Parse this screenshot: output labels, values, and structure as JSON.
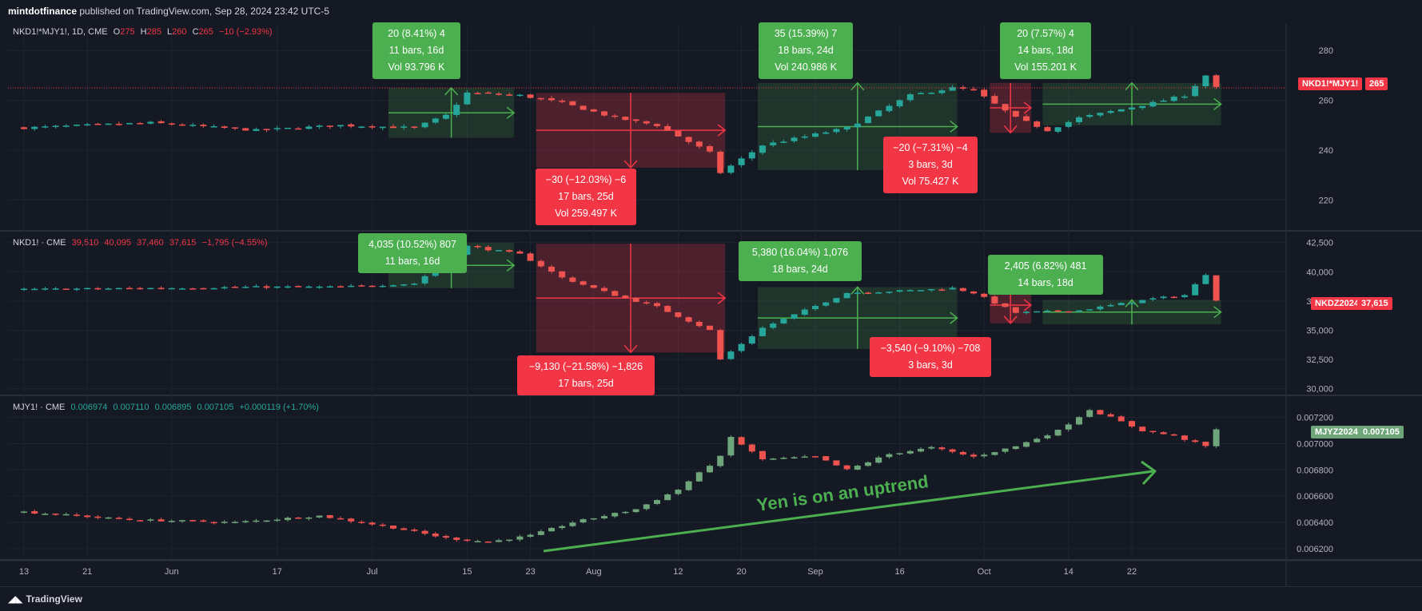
{
  "header": {
    "publisher": "mintdotfinance",
    "published_text": "published on TradingView.com, Sep 28, 2024 23:42 UTC-5"
  },
  "footer": {
    "brand": "TradingView"
  },
  "colors": {
    "up": "#26a69a",
    "down": "#ef5350",
    "mjy_up": "#6ea57a",
    "measure_up": "#4caf50",
    "measure_down": "#f23645",
    "background": "#151924"
  },
  "chart_data": [
    {
      "type": "candlestick",
      "pane": "ratio",
      "legend": {
        "symbol": "NKD1!*MJY1!, 1D, CME",
        "o_label": "O",
        "o": "275",
        "h_label": "H",
        "h": "285",
        "l_label": "L",
        "l": "260",
        "c_label": "C",
        "c": "265",
        "change": "−10 (−2.93%)"
      },
      "price_tag": {
        "symbol": "NKD1!*MJY1!",
        "value": "265"
      },
      "yticks": [
        "280",
        "260",
        "240",
        "220"
      ],
      "ytick_values": [
        280,
        260,
        240,
        220
      ],
      "ylim": [
        208,
        290
      ],
      "anchors": [
        [
          0,
          249
        ],
        [
          12,
          251
        ],
        [
          22,
          248
        ],
        [
          30,
          250
        ],
        [
          37,
          249
        ],
        [
          40,
          254
        ],
        [
          42,
          263
        ],
        [
          47,
          262
        ],
        [
          51,
          259
        ],
        [
          56,
          253
        ],
        [
          60,
          250
        ],
        [
          65,
          239
        ],
        [
          66,
          231
        ],
        [
          70,
          242
        ],
        [
          78,
          249
        ],
        [
          84,
          262
        ],
        [
          88,
          265
        ],
        [
          90,
          264
        ],
        [
          94,
          253
        ],
        [
          97,
          248
        ],
        [
          100,
          253
        ],
        [
          107,
          259
        ],
        [
          110,
          262
        ],
        [
          112,
          270
        ],
        [
          113,
          265
        ]
      ],
      "measures": [
        {
          "from": 35,
          "to": 46,
          "low": 245,
          "high": 265,
          "dir": "up",
          "text": [
            "20 (8.41%) 4",
            "11 bars, 16d",
            "Vol 93.796 K"
          ]
        },
        {
          "from": 49,
          "to": 66,
          "low": 233,
          "high": 263,
          "dir": "down",
          "text": [
            "−30 (−12.03%) −6",
            "17 bars, 25d",
            "Vol 259.497 K"
          ]
        },
        {
          "from": 70,
          "to": 88,
          "low": 232,
          "high": 267,
          "dir": "up",
          "text": [
            "35 (15.39%) 7",
            "18 bars, 24d",
            "Vol 240.986 K"
          ]
        },
        {
          "from": 92,
          "to": 95,
          "low": 247,
          "high": 267,
          "dir": "down",
          "text": [
            "−20 (−7.31%) −4",
            "3 bars, 3d",
            "Vol 75.427 K"
          ]
        },
        {
          "from": 97,
          "to": 113,
          "low": 250,
          "high": 267,
          "dir": "up",
          "text": [
            "20 (7.57%) 4",
            "14 bars, 18d",
            "Vol 155.201 K"
          ]
        }
      ]
    },
    {
      "type": "candlestick",
      "pane": "nikkei",
      "legend": {
        "symbol": "NKD1! · CME",
        "o": "39,510",
        "h": "40,095",
        "l": "37,460",
        "c": "37,615",
        "change": "−1,795 (−4.55%)"
      },
      "price_tag": {
        "symbol": "NKDZ2024",
        "value": "37,615"
      },
      "yticks": [
        "42,500",
        "40,000",
        "37,500",
        "35,000",
        "32,500",
        "30,000"
      ],
      "ytick_values": [
        42500,
        40000,
        37500,
        35000,
        32500,
        30000
      ],
      "ylim": [
        29500,
        43300
      ],
      "anchors": [
        [
          0,
          38500
        ],
        [
          12,
          38600
        ],
        [
          22,
          38700
        ],
        [
          30,
          38700
        ],
        [
          37,
          39000
        ],
        [
          42,
          42200
        ],
        [
          47,
          41500
        ],
        [
          51,
          39500
        ],
        [
          56,
          38000
        ],
        [
          60,
          37000
        ],
        [
          65,
          35000
        ],
        [
          66,
          32500
        ],
        [
          70,
          35200
        ],
        [
          78,
          38200
        ],
        [
          84,
          38400
        ],
        [
          88,
          38600
        ],
        [
          90,
          38200
        ],
        [
          94,
          36500
        ],
        [
          97,
          36600
        ],
        [
          100,
          36700
        ],
        [
          107,
          37700
        ],
        [
          110,
          38000
        ],
        [
          112,
          39800
        ],
        [
          113,
          37615
        ]
      ],
      "measures": [
        {
          "from": 35,
          "to": 46,
          "low": 38600,
          "high": 42500,
          "dir": "up",
          "text": [
            "4,035 (10.52%) 807",
            "11 bars, 16d"
          ]
        },
        {
          "from": 49,
          "to": 66,
          "low": 33100,
          "high": 42400,
          "dir": "down",
          "text": [
            "−9,130 (−21.58%) −1,826",
            "17 bars, 25d"
          ]
        },
        {
          "from": 70,
          "to": 88,
          "low": 33400,
          "high": 38700,
          "dir": "up",
          "text": [
            "5,380 (16.04%) 1,076",
            "18 bars, 24d"
          ]
        },
        {
          "from": 92,
          "to": 95,
          "low": 35600,
          "high": 38700,
          "dir": "down",
          "text": [
            "−3,540 (−9.10%) −708",
            "3 bars, 3d"
          ]
        },
        {
          "from": 97,
          "to": 113,
          "low": 35500,
          "high": 37600,
          "dir": "up",
          "text": [
            "2,405 (6.82%) 481",
            "14 bars, 18d"
          ]
        }
      ]
    },
    {
      "type": "candlestick",
      "pane": "yen",
      "legend": {
        "symbol": "MJY1! · CME",
        "o": "0.006974",
        "h": "0.007110",
        "l": "0.006895",
        "c": "0.007105",
        "change": "+0.000119 (+1.70%)"
      },
      "price_tag": {
        "symbol": "MJYZ2024",
        "value": "0.007105"
      },
      "yticks": [
        "0.007200",
        "0.007000",
        "0.006800",
        "0.006600",
        "0.006400",
        "0.006200"
      ],
      "ytick_values": [
        0.0072,
        0.007,
        0.0068,
        0.0066,
        0.0064,
        0.0062
      ],
      "ylim": [
        0.00612,
        0.00735
      ],
      "anchors": [
        [
          0,
          0.00648
        ],
        [
          10,
          0.00642
        ],
        [
          20,
          0.0064
        ],
        [
          28,
          0.00645
        ],
        [
          35,
          0.00636
        ],
        [
          40,
          0.00628
        ],
        [
          44,
          0.00625
        ],
        [
          48,
          0.0063
        ],
        [
          52,
          0.0064
        ],
        [
          58,
          0.0065
        ],
        [
          62,
          0.00665
        ],
        [
          66,
          0.0069
        ],
        [
          67,
          0.00705
        ],
        [
          70,
          0.00688
        ],
        [
          75,
          0.0069
        ],
        [
          78,
          0.0068
        ],
        [
          82,
          0.00692
        ],
        [
          86,
          0.00697
        ],
        [
          90,
          0.0069
        ],
        [
          94,
          0.00698
        ],
        [
          98,
          0.0071
        ],
        [
          101,
          0.00726
        ],
        [
          103,
          0.0072
        ],
        [
          106,
          0.0071
        ],
        [
          109,
          0.00706
        ],
        [
          112,
          0.00698
        ],
        [
          113,
          0.007105
        ]
      ],
      "annotation": "Yen is on an uptrend"
    }
  ],
  "x_axis": {
    "labels": [
      "13",
      "21",
      "Jun",
      "17",
      "Jul",
      "15",
      "23",
      "Aug",
      "12",
      "20",
      "Sep",
      "16",
      "Oct",
      "14",
      "22"
    ],
    "label_bars": [
      0,
      6,
      14,
      24,
      33,
      42,
      48,
      54,
      62,
      68,
      75,
      83,
      91,
      99,
      105
    ]
  }
}
